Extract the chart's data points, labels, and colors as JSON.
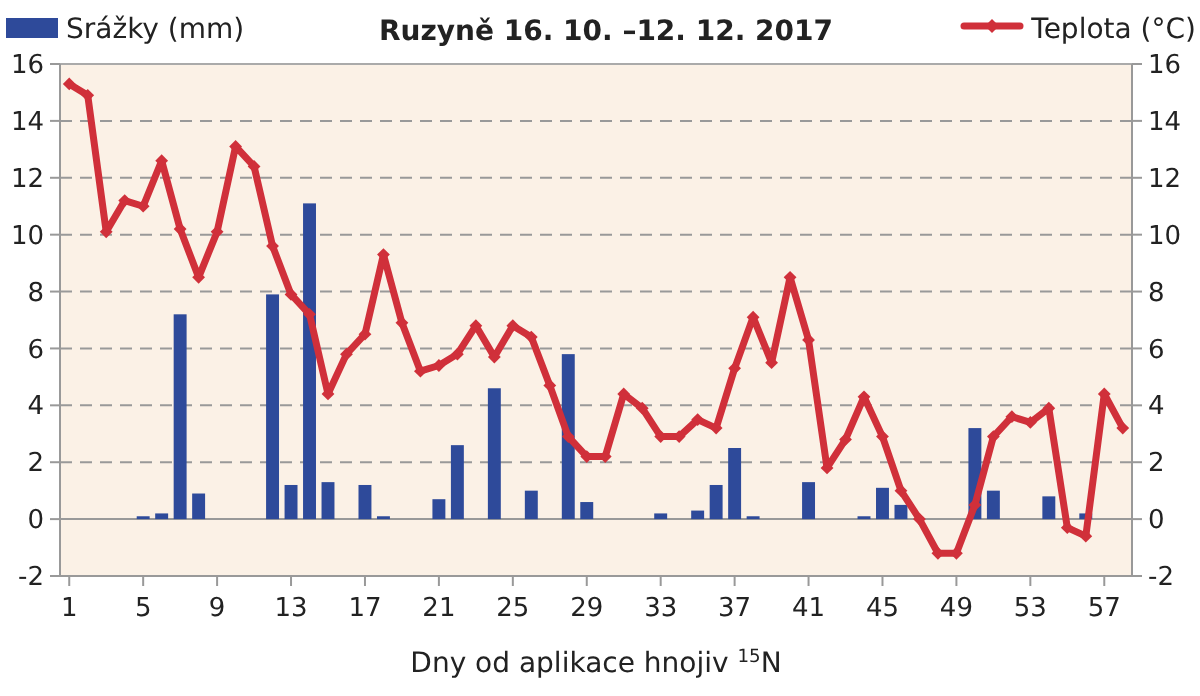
{
  "chart_data": {
    "type": "bar",
    "title": "Ruzyně 16. 10. –12. 12. 2017",
    "xlabel": "Dny od aplikace hnojiv $^{15}$N",
    "categories": [
      "1",
      null,
      null,
      null,
      "5",
      null,
      null,
      null,
      "9",
      null,
      null,
      null,
      "13",
      null,
      null,
      null,
      "17",
      null,
      null,
      null,
      "21",
      null,
      null,
      null,
      "25",
      null,
      null,
      null,
      "29",
      null,
      null,
      null,
      "33",
      null,
      null,
      null,
      "37",
      null,
      null,
      null,
      "41",
      null,
      null,
      null,
      "45",
      null,
      null,
      null,
      "49",
      null,
      null,
      null,
      "53",
      null,
      null,
      null,
      "57",
      null
    ],
    "series": [
      {
        "name": "Srážky (mm)",
        "color": "#2e4a9a",
        "values": [
          0,
          0,
          0,
          0,
          0.1,
          0.2,
          7.2,
          0.9,
          0,
          0,
          0,
          7.9,
          1.2,
          11.1,
          1.3,
          0,
          1.2,
          0.1,
          0,
          0,
          0.7,
          2.6,
          0,
          4.6,
          0,
          1.0,
          0,
          5.8,
          0.6,
          0,
          0,
          0,
          0.2,
          0,
          0.3,
          1.2,
          2.5,
          0.1,
          0,
          0,
          1.3,
          0,
          0,
          0.1,
          1.1,
          0.5,
          0,
          0,
          0,
          3.2,
          1.0,
          0,
          0,
          0.8,
          0,
          0.2,
          0,
          0
        ]
      },
      {
        "name": "Teplota (°C)",
        "type": "line",
        "axis": "y2",
        "color": "#d0303a",
        "values": [
          15.3,
          14.9,
          10.1,
          11.2,
          11.0,
          12.6,
          10.2,
          8.5,
          10.1,
          13.1,
          12.4,
          9.6,
          7.9,
          7.2,
          4.4,
          5.8,
          6.5,
          9.3,
          6.9,
          5.2,
          5.4,
          5.8,
          6.8,
          5.7,
          6.8,
          6.4,
          4.7,
          2.9,
          2.2,
          2.2,
          4.4,
          3.9,
          2.9,
          2.9,
          3.5,
          3.2,
          5.3,
          7.1,
          5.5,
          8.5,
          6.3,
          1.8,
          2.8,
          4.3,
          2.9,
          1.0,
          0.0,
          -1.2,
          -1.2,
          0.5,
          2.9,
          3.6,
          3.4,
          3.9,
          -0.3,
          -0.6,
          4.4,
          3.2
        ]
      }
    ],
    "ylim": [
      -2,
      16
    ],
    "yticks": [
      -2,
      0,
      2,
      4,
      6,
      8,
      10,
      12,
      14,
      16
    ],
    "y2lim": [
      -2,
      16
    ],
    "y2ticks": [
      -2,
      0,
      2,
      4,
      6,
      8,
      10,
      12,
      14,
      16
    ],
    "grid": "y",
    "legend": "top",
    "marker": "diamond",
    "line_style": "solid"
  }
}
